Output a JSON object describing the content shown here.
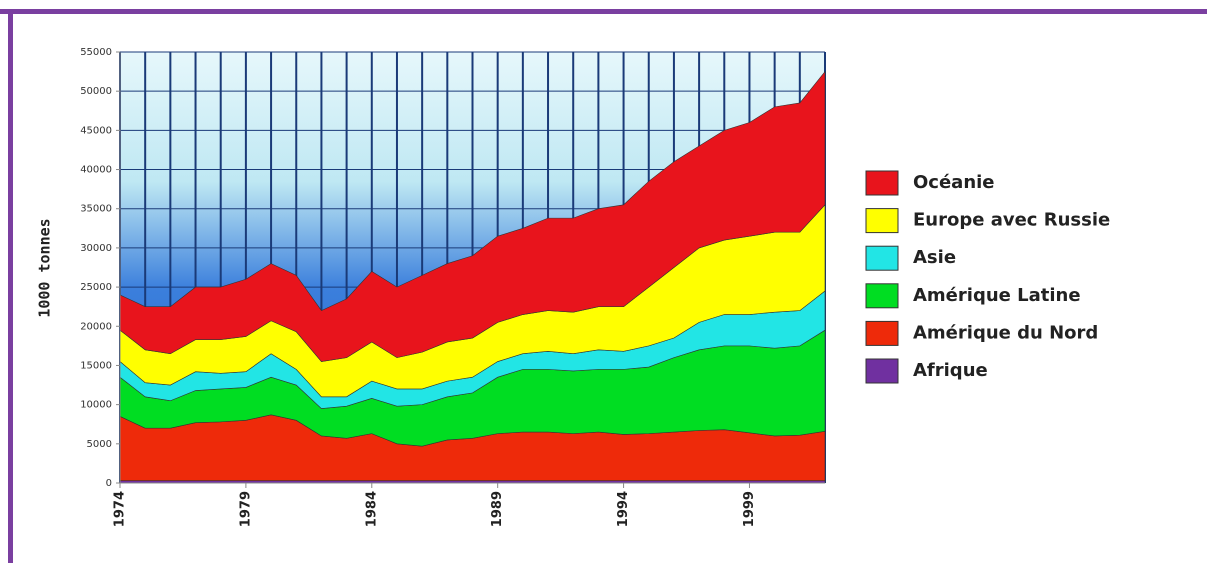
{
  "chart_data": {
    "type": "stacked_area",
    "y_label": "1000 tonnes",
    "x": [
      1974,
      1975,
      1976,
      1977,
      1978,
      1979,
      1980,
      1981,
      1982,
      1983,
      1984,
      1985,
      1986,
      1987,
      1988,
      1989,
      1990,
      1991,
      1992,
      1993,
      1994,
      1995,
      1996,
      1997,
      1998,
      1999,
      2000,
      2001,
      2002
    ],
    "xlim": [
      1974,
      2002
    ],
    "xticks": [
      1974,
      1979,
      1984,
      1989,
      1994,
      1999
    ],
    "ylim": [
      0,
      55000
    ],
    "yticks": [
      0,
      5000,
      10000,
      15000,
      20000,
      25000,
      30000,
      35000,
      40000,
      45000,
      50000,
      55000
    ],
    "grid": true,
    "legend": "right",
    "series": [
      {
        "name": "Afrique",
        "color": "#7030a0",
        "values": [
          300,
          300,
          300,
          300,
          300,
          300,
          300,
          300,
          300,
          300,
          300,
          300,
          300,
          300,
          300,
          300,
          300,
          300,
          300,
          300,
          300,
          300,
          300,
          300,
          300,
          300,
          300,
          300,
          300
        ]
      },
      {
        "name": "Amérique du Nord",
        "color": "#ee2a0a",
        "values": [
          8200,
          6700,
          6700,
          7400,
          7500,
          7700,
          8400,
          7700,
          5700,
          5400,
          6000,
          4700,
          4400,
          5200,
          5400,
          6000,
          6200,
          6200,
          6000,
          6200,
          5900,
          6000,
          6200,
          6400,
          6500,
          6100,
          5700,
          5800,
          6300
        ]
      },
      {
        "name": "Amérique Latine",
        "color": "#00dd22",
        "values": [
          5000,
          4000,
          3500,
          4100,
          4200,
          4200,
          4800,
          4500,
          3500,
          4100,
          4500,
          4800,
          5300,
          5500,
          5800,
          7200,
          8000,
          8000,
          8000,
          8000,
          8300,
          8500,
          9500,
          10300,
          10700,
          11100,
          11200,
          11400,
          12900
        ]
      },
      {
        "name": "Asie",
        "color": "#22e5e5",
        "values": [
          2000,
          1800,
          2000,
          2400,
          2000,
          2000,
          3000,
          2000,
          1500,
          1200,
          2200,
          2200,
          2000,
          2000,
          2000,
          2000,
          2000,
          2300,
          2200,
          2500,
          2300,
          2700,
          2500,
          3500,
          4000,
          4000,
          4600,
          4500,
          5000
        ]
      },
      {
        "name": "Europe avec Russie",
        "color": "#ffff00",
        "values": [
          4000,
          4200,
          4000,
          4100,
          4300,
          4500,
          4200,
          4800,
          4500,
          5000,
          5000,
          4000,
          4700,
          5000,
          5000,
          5000,
          5000,
          5200,
          5300,
          5500,
          5700,
          7500,
          9000,
          9500,
          9500,
          10000,
          10200,
          10000,
          11000
        ]
      },
      {
        "name": "Océanie",
        "color": "#e8141c",
        "values": [
          4500,
          5500,
          6000,
          6700,
          6700,
          7300,
          7300,
          7200,
          6500,
          7500,
          9000,
          9000,
          9800,
          10000,
          10500,
          11000,
          11000,
          11800,
          12000,
          12500,
          13000,
          13500,
          13500,
          13000,
          14000,
          14500,
          16000,
          16500,
          17000
        ]
      }
    ]
  }
}
